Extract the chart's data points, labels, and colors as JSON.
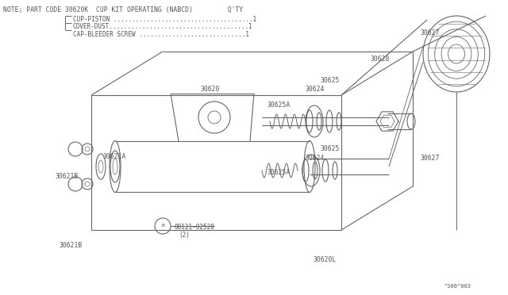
{
  "bg_color": "#ffffff",
  "line_color": "#666666",
  "text_color": "#555555",
  "title_note": "NOTE; PART CODE 30620K  CUP KIT OPERATING (NABCD)         Q'TY",
  "bom_items": [
    "CUP-PISTON ......................................1",
    "COVER-DUST......................................1",
    "CAP-BLEEDER SCREW .............................1"
  ],
  "footer_text": "^306^003",
  "figsize": [
    6.4,
    3.72
  ],
  "dpi": 100
}
